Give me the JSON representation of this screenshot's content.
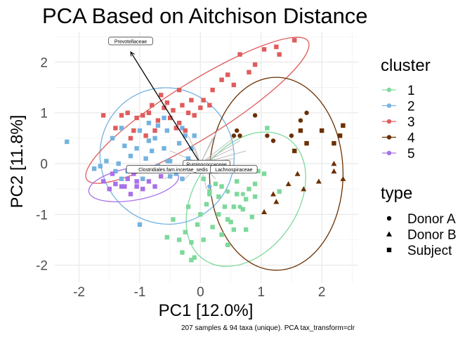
{
  "chart_data": {
    "type": "scatter",
    "title": "PCA Based on Aitchison Distance",
    "xlabel": "PC1 [12.0%]",
    "ylabel": "PC2 [11.8%]",
    "caption": "207 samples & 94 taxa (unique). PCA tax_transform=clr",
    "xlim": [
      -2.4,
      2.6
    ],
    "ylim": [
      -2.35,
      2.6
    ],
    "x_ticks": [
      -2,
      -1,
      0,
      1,
      2
    ],
    "y_ticks": [
      -2,
      -1,
      0,
      1,
      2
    ],
    "grid": true,
    "legend": {
      "cluster_title": "cluster",
      "clusters": [
        {
          "name": "1",
          "color": "#7dd99b"
        },
        {
          "name": "2",
          "color": "#74b3e0"
        },
        {
          "name": "3",
          "color": "#e05c5c"
        },
        {
          "name": "4",
          "color": "#6b3000"
        },
        {
          "name": "5",
          "color": "#a970e8"
        }
      ],
      "type_title": "type",
      "types": [
        {
          "name": "Donor A",
          "shape": "circle"
        },
        {
          "name": "Donor B",
          "shape": "triangle"
        },
        {
          "name": "Subject",
          "shape": "square"
        }
      ],
      "placement": "right"
    },
    "ellipses": [
      {
        "cluster": "1",
        "cx": 0.75,
        "cy": -0.7,
        "rx": 0.85,
        "ry": 1.45,
        "angle": -35
      },
      {
        "cluster": "2",
        "cx": -0.55,
        "cy": 0.15,
        "rx": 1.1,
        "ry": 1.35,
        "angle": 25
      },
      {
        "cluster": "3",
        "cx": -0.05,
        "cy": 1.05,
        "rx": 2.15,
        "ry": 0.55,
        "angle": 32
      },
      {
        "cluster": "4",
        "cx": 1.25,
        "cy": -0.2,
        "rx": 1.1,
        "ry": 1.9,
        "angle": 0
      },
      {
        "cluster": "5",
        "cx": -1.1,
        "cy": -0.4,
        "rx": 0.75,
        "ry": 0.32,
        "angle": 10
      }
    ],
    "loadings": [
      {
        "label": "Prevotellaceae",
        "x": -1.15,
        "y": 2.2
      },
      {
        "label": "Ruminococcaceae",
        "x": 0.45,
        "y": 0.05
      },
      {
        "label": "Clostridiales.fam.incertae_sedis",
        "x": -0.35,
        "y": -0.05
      },
      {
        "label": "Lachnospiraceae",
        "x": 0.7,
        "y": -0.05
      }
    ],
    "minor_loadings": [
      {
        "x": 0.6,
        "y": 0.55
      },
      {
        "x": 0.65,
        "y": 0.45
      },
      {
        "x": 0.55,
        "y": 0.3
      },
      {
        "x": 0.75,
        "y": 0.25
      },
      {
        "x": 0.3,
        "y": 0.7
      },
      {
        "x": 0.2,
        "y": 0.5
      },
      {
        "x": -0.1,
        "y": 0.35
      },
      {
        "x": 0.4,
        "y": -0.15
      },
      {
        "x": 0.25,
        "y": -0.3
      },
      {
        "x": -0.3,
        "y": -0.35
      },
      {
        "x": -0.6,
        "y": -0.3
      },
      {
        "x": -0.5,
        "y": 0.25
      },
      {
        "x": 0.1,
        "y": -0.5
      },
      {
        "x": -0.2,
        "y": 0.55
      },
      {
        "x": 0.55,
        "y": 0.1
      }
    ],
    "series": [
      {
        "cluster": "1",
        "type": "Subject",
        "points": [
          [
            0.55,
            -0.85
          ],
          [
            0.6,
            -0.6
          ],
          [
            0.45,
            -1.1
          ],
          [
            0.8,
            -0.5
          ],
          [
            0.35,
            -0.45
          ],
          [
            0.7,
            -0.9
          ],
          [
            0.1,
            -0.8
          ],
          [
            -0.05,
            -1.2
          ],
          [
            -0.15,
            -1.55
          ],
          [
            -0.25,
            -1.35
          ],
          [
            0.2,
            -1.25
          ],
          [
            0.35,
            -1.4
          ],
          [
            0.5,
            -1.15
          ],
          [
            0.6,
            -0.35
          ],
          [
            0.9,
            -0.4
          ],
          [
            0.95,
            -0.15
          ],
          [
            0.75,
            -0.7
          ],
          [
            0.3,
            -0.65
          ],
          [
            0.15,
            -0.6
          ],
          [
            -0.3,
            -1.75
          ],
          [
            -0.1,
            -1.85
          ],
          [
            0.05,
            -1.5
          ],
          [
            0.45,
            -1.6
          ],
          [
            0.3,
            -1.0
          ],
          [
            0.55,
            -1.3
          ],
          [
            -0.45,
            -1.1
          ],
          [
            -0.35,
            -1.5
          ],
          [
            -0.55,
            -1.45
          ],
          [
            0.0,
            -1.0
          ],
          [
            -0.2,
            -0.85
          ],
          [
            0.85,
            -1.05
          ],
          [
            1.05,
            -0.2
          ],
          [
            0.85,
            -0.1
          ],
          [
            1.3,
            -0.55
          ],
          [
            1.1,
            0.7
          ],
          [
            0.25,
            -0.4
          ],
          [
            0.75,
            -1.3
          ],
          [
            0.9,
            -0.65
          ],
          [
            -0.15,
            -1.9
          ],
          [
            0.15,
            -0.55
          ],
          [
            0.4,
            -0.85
          ],
          [
            0.05,
            -0.3
          ]
        ]
      },
      {
        "cluster": "1",
        "type": "Donor A",
        "points": [
          [
            0.7,
            -0.6
          ],
          [
            0.45,
            -0.55
          ],
          [
            0.65,
            -0.85
          ]
        ]
      },
      {
        "cluster": "2",
        "type": "Subject",
        "points": [
          [
            -2.2,
            0.43
          ],
          [
            -1.55,
            0.05
          ],
          [
            -1.4,
            -0.15
          ],
          [
            -1.3,
            -0.3
          ],
          [
            -1.1,
            -0.1
          ],
          [
            -1.25,
            0.35
          ],
          [
            -1.05,
            0.3
          ],
          [
            -0.85,
            0.45
          ],
          [
            -1.0,
            0.65
          ],
          [
            -0.75,
            0.5
          ],
          [
            -0.6,
            0.3
          ],
          [
            -0.7,
            -0.05
          ],
          [
            -0.5,
            0.05
          ],
          [
            -0.4,
            -0.2
          ],
          [
            -0.3,
            -0.3
          ],
          [
            -0.9,
            0.1
          ],
          [
            -1.15,
            0.15
          ],
          [
            -0.55,
            0.65
          ],
          [
            -0.35,
            0.4
          ],
          [
            -0.2,
            0.1
          ],
          [
            -0.15,
            0.3
          ],
          [
            -0.1,
            0.55
          ],
          [
            -0.05,
            -0.15
          ],
          [
            0.05,
            -0.1
          ],
          [
            -0.25,
            0.55
          ],
          [
            -0.85,
            0.8
          ],
          [
            -1.3,
            0.7
          ],
          [
            -1.45,
            0.5
          ],
          [
            -1.65,
            -0.05
          ],
          [
            -1.2,
            -0.15
          ],
          [
            -0.95,
            -0.3
          ],
          [
            -1.0,
            -1.2
          ],
          [
            -1.75,
            -0.1
          ],
          [
            -0.5,
            -0.25
          ],
          [
            -0.8,
            0.25
          ],
          [
            -0.3,
            0.7
          ],
          [
            -0.6,
            0.9
          ],
          [
            -1.35,
            0.0
          ],
          [
            -0.7,
            0.75
          ],
          [
            0.1,
            0.0
          ]
        ]
      },
      {
        "cluster": "2",
        "type": "Donor A",
        "points": [
          [
            -0.55,
            0.05
          ],
          [
            0.15,
            -0.45
          ]
        ]
      },
      {
        "cluster": "3",
        "type": "Subject",
        "points": [
          [
            1.05,
            2.25
          ],
          [
            1.25,
            2.3
          ],
          [
            1.3,
            2.15
          ],
          [
            1.55,
            2.43
          ],
          [
            0.9,
            1.95
          ],
          [
            0.8,
            1.8
          ],
          [
            0.55,
            1.55
          ],
          [
            0.35,
            1.65
          ],
          [
            0.2,
            1.45
          ],
          [
            -0.35,
            1.45
          ],
          [
            -0.65,
            1.35
          ],
          [
            -0.3,
            1.15
          ],
          [
            -0.45,
            1.05
          ],
          [
            -0.55,
            1.2
          ],
          [
            -0.8,
            1.15
          ],
          [
            -0.85,
            1.0
          ],
          [
            -0.7,
            0.85
          ],
          [
            -1.05,
            0.9
          ],
          [
            -1.1,
            0.65
          ],
          [
            -0.95,
            0.95
          ],
          [
            -0.35,
            0.8
          ],
          [
            -0.2,
            1.0
          ],
          [
            -0.1,
            0.95
          ],
          [
            0.05,
            1.25
          ],
          [
            0.15,
            1.15
          ],
          [
            -0.15,
            1.25
          ],
          [
            -0.5,
            0.9
          ],
          [
            -0.4,
            0.7
          ],
          [
            -0.6,
            1.1
          ],
          [
            -1.3,
            0.95
          ],
          [
            -1.4,
            0.7
          ],
          [
            -1.6,
            0.95
          ],
          [
            -1.2,
            1.0
          ],
          [
            -0.75,
            0.65
          ],
          [
            0.65,
            2.15
          ],
          [
            0.45,
            1.75
          ],
          [
            -0.25,
            0.65
          ],
          [
            -0.9,
            0.55
          ],
          [
            -1.15,
            0.5
          ],
          [
            0.0,
            1.1
          ]
        ]
      },
      {
        "cluster": "4",
        "type": "Donor A",
        "points": [
          [
            0.6,
            0.65
          ],
          [
            0.65,
            0.55
          ],
          [
            0.9,
            0.95
          ],
          [
            1.1,
            0.55
          ],
          [
            1.5,
            0.55
          ],
          [
            1.2,
            0.45
          ],
          [
            1.75,
            1.0
          ],
          [
            1.65,
            0.85
          ],
          [
            0.55,
            0.55
          ]
        ]
      },
      {
        "cluster": "4",
        "type": "Donor B",
        "points": [
          [
            1.6,
            -0.2
          ],
          [
            1.45,
            -0.4
          ],
          [
            1.7,
            -0.5
          ],
          [
            1.95,
            -0.35
          ],
          [
            2.2,
            -0.15
          ],
          [
            2.35,
            -0.3
          ],
          [
            2.2,
            0.0
          ],
          [
            1.05,
            -0.95
          ],
          [
            1.2,
            -0.6
          ],
          [
            1.25,
            -0.75
          ]
        ]
      },
      {
        "cluster": "4",
        "type": "Subject",
        "points": [
          [
            2.35,
            0.75
          ],
          [
            2.0,
            0.65
          ],
          [
            2.2,
            0.4
          ],
          [
            1.65,
            0.65
          ],
          [
            1.75,
            0.4
          ],
          [
            1.55,
            0.25
          ],
          [
            2.3,
            0.55
          ]
        ]
      },
      {
        "cluster": "5",
        "type": "Subject",
        "points": [
          [
            -1.5,
            -0.5
          ],
          [
            -1.4,
            -0.4
          ],
          [
            -1.3,
            -0.45
          ],
          [
            -1.2,
            -0.3
          ],
          [
            -1.1,
            -0.2
          ],
          [
            -1.05,
            -0.45
          ],
          [
            -0.95,
            -0.5
          ],
          [
            -0.85,
            -0.35
          ],
          [
            -1.15,
            -0.6
          ],
          [
            -1.45,
            -0.2
          ],
          [
            -1.05,
            -0.35
          ],
          [
            -1.6,
            -0.35
          ],
          [
            -1.25,
            -0.45
          ],
          [
            -0.75,
            -0.45
          ],
          [
            -0.65,
            -0.25
          ]
        ]
      }
    ]
  }
}
